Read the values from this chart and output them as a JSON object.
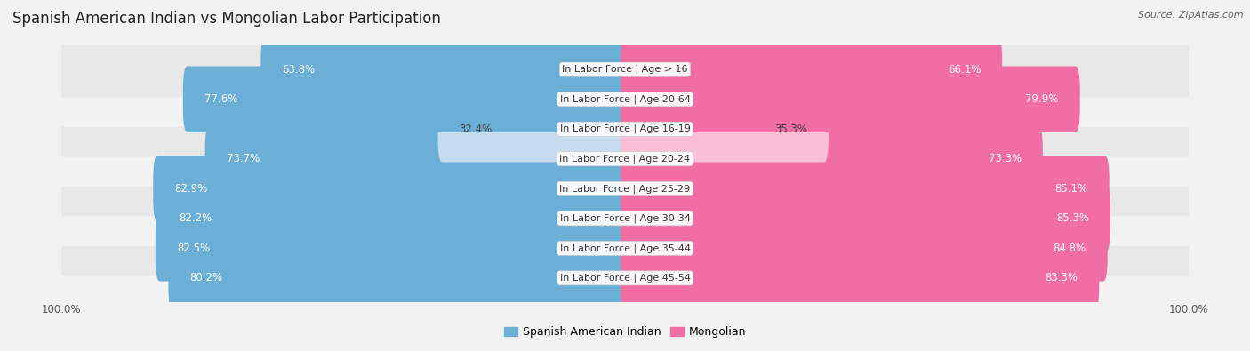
{
  "title": "Spanish American Indian vs Mongolian Labor Participation",
  "source": "Source: ZipAtlas.com",
  "categories": [
    "In Labor Force | Age > 16",
    "In Labor Force | Age 20-64",
    "In Labor Force | Age 16-19",
    "In Labor Force | Age 20-24",
    "In Labor Force | Age 25-29",
    "In Labor Force | Age 30-34",
    "In Labor Force | Age 35-44",
    "In Labor Force | Age 45-54"
  ],
  "spanish_values": [
    63.8,
    77.6,
    32.4,
    73.7,
    82.9,
    82.2,
    82.5,
    80.2
  ],
  "mongolian_values": [
    66.1,
    79.9,
    35.3,
    73.3,
    85.1,
    85.3,
    84.8,
    83.3
  ],
  "spanish_color": "#6BAED6",
  "mongolian_color": "#F06EA3",
  "spanish_light_color": "#C6DCEE",
  "mongolian_light_color": "#F9C0D8",
  "background_color": "#f2f2f2",
  "row_bg_even": "#e8e8e8",
  "row_bg_odd": "#f2f2f2",
  "legend_spanish": "Spanish American Indian",
  "legend_mongolian": "Mongolian",
  "title_fontsize": 12,
  "value_fontsize": 8.5,
  "category_fontsize": 8,
  "axis_tick_fontsize": 8.5
}
